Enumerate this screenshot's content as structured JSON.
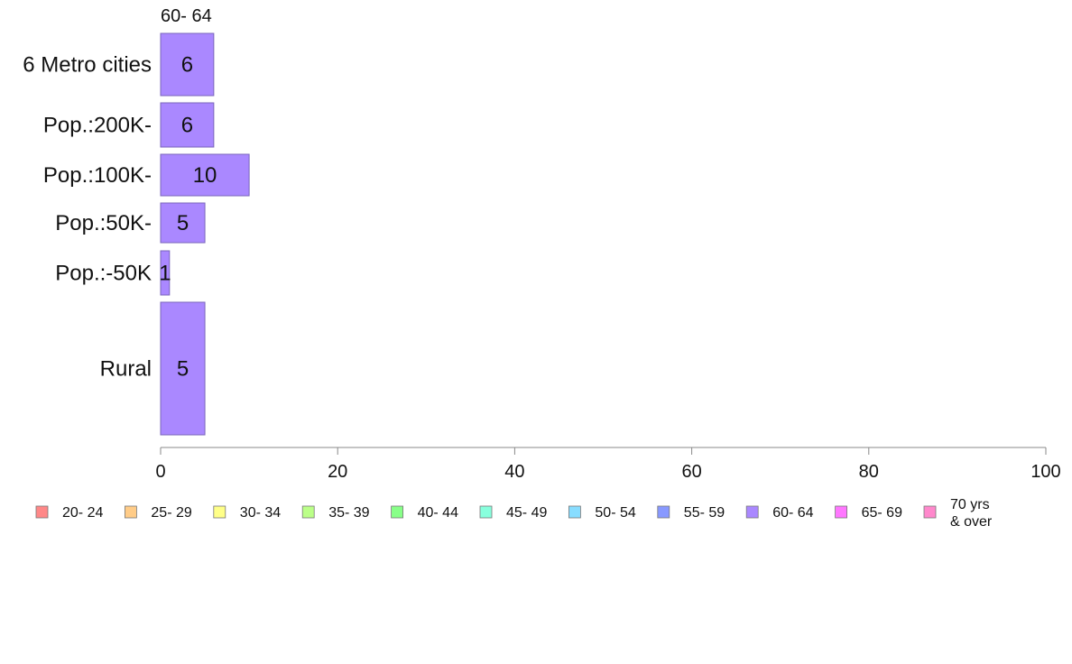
{
  "chart_data": {
    "type": "bar",
    "orientation": "horizontal",
    "panel_title": "60- 64",
    "categories": [
      "6 Metro cities",
      "Pop.:200K-",
      "Pop.:100K-",
      "Pop.:50K-",
      "Pop.:-50K",
      "Rural"
    ],
    "values": [
      6,
      6,
      10,
      5,
      1,
      5
    ],
    "value_labels": [
      "6",
      "6",
      "10",
      "5",
      "1",
      "5"
    ],
    "series_color": "#aa88ff",
    "bar_edge_color": "#7a66bb",
    "xlim": [
      0,
      100
    ],
    "x_ticks": [
      0,
      20,
      40,
      60,
      80,
      100
    ],
    "x_tick_labels": [
      "0",
      "20",
      "40",
      "60",
      "80",
      "100"
    ],
    "grid": false,
    "legend_position": "bottom",
    "legend": [
      {
        "label": "20- 24",
        "color": "#ff8888"
      },
      {
        "label": "25- 29",
        "color": "#ffcc88"
      },
      {
        "label": "30- 34",
        "color": "#ffff88"
      },
      {
        "label": "35- 39",
        "color": "#bbff88"
      },
      {
        "label": "40- 44",
        "color": "#88ff88"
      },
      {
        "label": "45- 49",
        "color": "#88ffdd"
      },
      {
        "label": "50- 54",
        "color": "#88ddff"
      },
      {
        "label": "55- 59",
        "color": "#8899ff"
      },
      {
        "label": "60- 64",
        "color": "#aa88ff"
      },
      {
        "label": "65- 69",
        "color": "#ff77ff"
      },
      {
        "label": "70 yrs\n& over",
        "color": "#ff88cc"
      }
    ]
  }
}
